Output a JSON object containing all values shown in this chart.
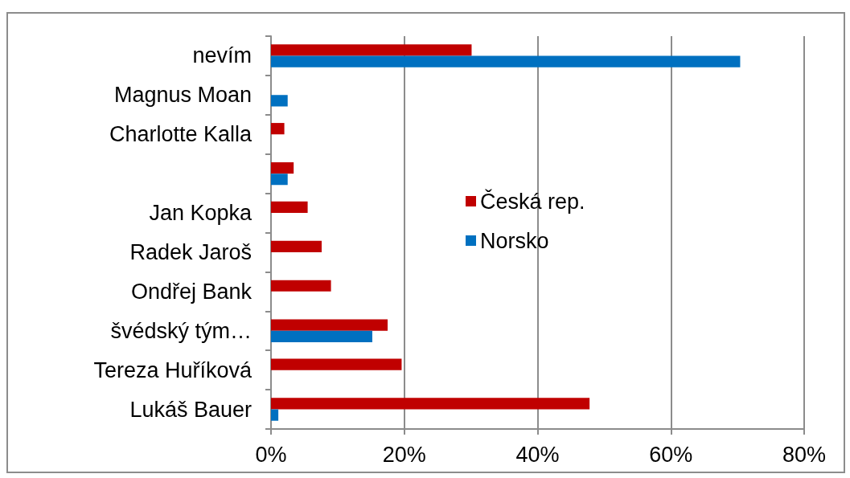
{
  "chart_data": {
    "type": "bar",
    "orientation": "horizontal",
    "categories": [
      "nevím",
      "Magnus Moan",
      "Charlotte Kalla",
      null,
      "Jan Kopka",
      "Radek Jaroš",
      "Ondřej Bank",
      "švédský tým…",
      "Tereza Huříková",
      "Lukáš Bauer"
    ],
    "series": [
      {
        "name": "Česká rep.",
        "color": "#c00000",
        "values": [
          30.1,
          null,
          2.0,
          3.4,
          5.5,
          7.6,
          9.0,
          17.5,
          19.6,
          47.8
        ]
      },
      {
        "name": "Norsko",
        "color": "#0070c0",
        "values": [
          70.4,
          2.5,
          null,
          2.5,
          null,
          null,
          null,
          15.2,
          null,
          1.1
        ]
      }
    ],
    "xlim": [
      0,
      80
    ],
    "xticks": [
      {
        "value": 0,
        "label": "0%"
      },
      {
        "value": 20,
        "label": "20%"
      },
      {
        "value": 40,
        "label": "40%"
      },
      {
        "value": 60,
        "label": "60%"
      },
      {
        "value": 80,
        "label": "80%"
      }
    ],
    "grid": "x",
    "legend": "center"
  }
}
